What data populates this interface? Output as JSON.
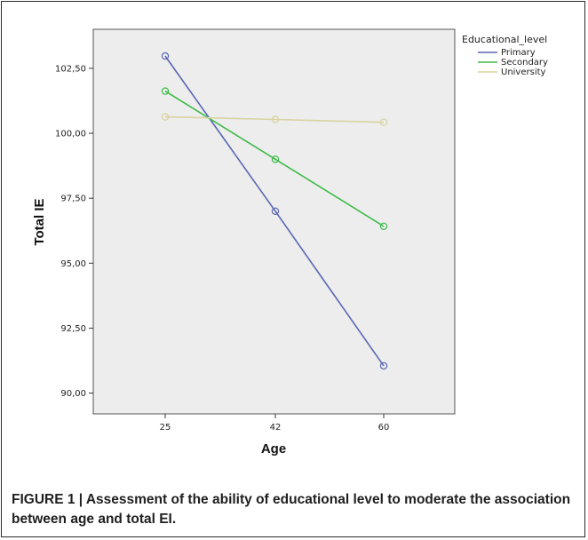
{
  "caption": "FIGURE 1 | Assessment of the ability of educational level to moderate the association between age and total EI.",
  "chart_data": {
    "type": "line",
    "xlabel": "Age",
    "ylabel": "Total IE",
    "categories": [
      "25",
      "42",
      "60"
    ],
    "ylim": [
      89.2,
      104.0
    ],
    "yticks": [
      "90,00",
      "92,50",
      "95,00",
      "97,50",
      "100,00",
      "102,50"
    ],
    "ytick_values": [
      90.0,
      92.5,
      95.0,
      97.5,
      100.0,
      102.5
    ],
    "legend_title": "Educational_level",
    "legend_position": "right",
    "grid": false,
    "plot_background": "#ededed",
    "series": [
      {
        "name": "Primary",
        "color": "#5a67b5",
        "values": [
          102.97,
          97.0,
          91.05
        ]
      },
      {
        "name": "Secondary",
        "color": "#3dbb47",
        "values": [
          101.62,
          99.0,
          96.42
        ]
      },
      {
        "name": "University",
        "color": "#d8d3a1",
        "values": [
          100.63,
          100.53,
          100.42
        ]
      }
    ]
  }
}
